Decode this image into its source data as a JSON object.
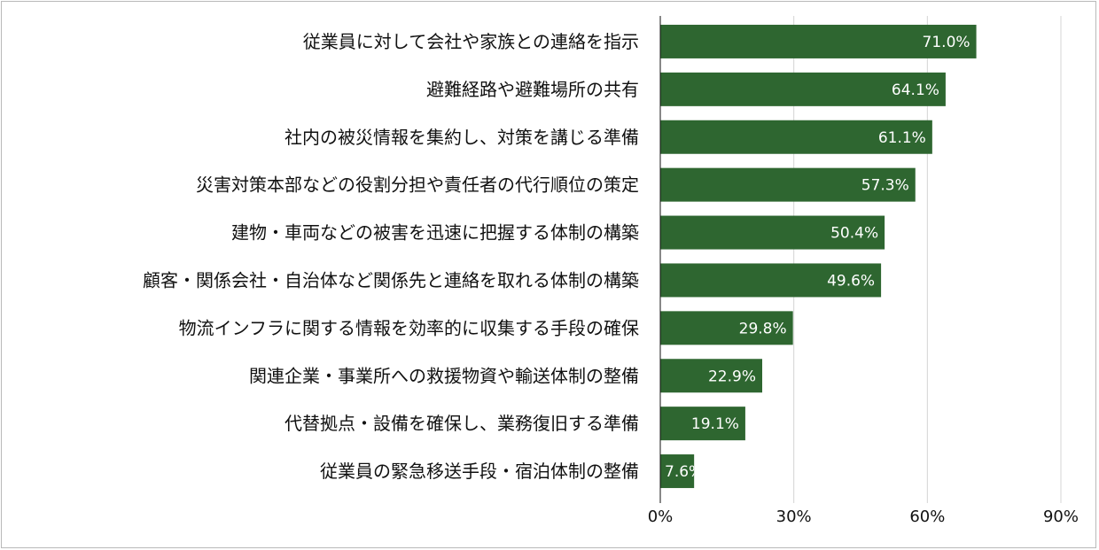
{
  "chart_data": {
    "type": "bar",
    "orientation": "horizontal",
    "categories": [
      "従業員に対して会社や家族との連絡を指示",
      "避難経路や避難場所の共有",
      "社内の被災情報を集約し、対策を講じる準備",
      "災害対策本部などの役割分担や責任者の代行順位の策定",
      "建物・車両などの被害を迅速に把握する体制の構築",
      "顧客・関係会社・自治体など関係先と連絡を取れる体制の構築",
      "物流インフラに関する情報を効率的に収集する手段の確保",
      "関連企業・事業所への救援物資や輸送体制の整備",
      "代替拠点・設備を確保し、業務復旧する準備",
      "従業員の緊急移送手段・宿泊体制の整備"
    ],
    "values": [
      71.0,
      64.1,
      61.1,
      57.3,
      50.4,
      49.6,
      29.8,
      22.9,
      19.1,
      7.6
    ],
    "value_labels": [
      "71.0%",
      "64.1%",
      "61.1%",
      "57.3%",
      "50.4%",
      "49.6%",
      "29.8%",
      "22.9%",
      "19.1%",
      "7.6%"
    ],
    "xlim": [
      0,
      90
    ],
    "xticks": [
      0,
      30,
      60,
      90
    ],
    "xtick_labels": [
      "0%",
      "30%",
      "60%",
      "90%"
    ],
    "grid": "vertical",
    "bar_color": "#2e6630",
    "grid_color": "#d4d4d4",
    "axis_color": "#111111"
  }
}
